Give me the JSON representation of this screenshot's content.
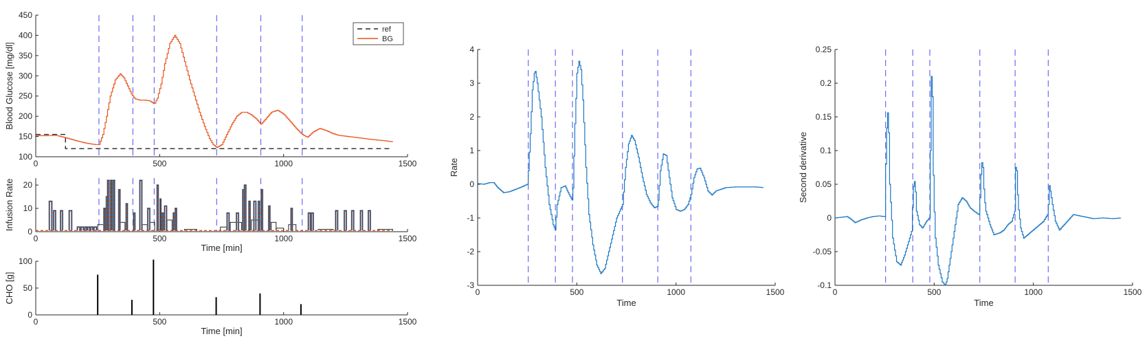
{
  "colors": {
    "axis": "#262626",
    "marker": "#6a6af0",
    "bg_line": "#e8531a",
    "ref_line": "#262626",
    "infusion_orange": "#e8531a",
    "infusion_blue": "#5b8fc4",
    "rate_line": "#1a76c2"
  },
  "meal_times": [
    255,
    392,
    478,
    730,
    908,
    1075
  ],
  "chart_data": [
    {
      "id": "bg",
      "type": "line",
      "xlabel": "",
      "ylabel": "Blood Glucose [mg/dl]",
      "xlim": [
        0,
        1500
      ],
      "ylim": [
        100,
        450
      ],
      "xticks": [
        0,
        500,
        1000,
        1500
      ],
      "yticks": [
        100,
        150,
        200,
        250,
        300,
        350,
        400,
        450
      ],
      "legend": {
        "position": "top-right",
        "entries": [
          "ref",
          "BG"
        ]
      },
      "series": [
        {
          "name": "ref",
          "style": "dashed",
          "x": [
            0,
            120,
            120,
            1440
          ],
          "y": [
            155,
            155,
            120,
            120
          ]
        },
        {
          "name": "BG",
          "style": "solid",
          "x": [
            0,
            40,
            80,
            120,
            160,
            200,
            240,
            255,
            270,
            285,
            300,
            320,
            340,
            355,
            370,
            385,
            400,
            420,
            440,
            460,
            478,
            490,
            505,
            520,
            540,
            560,
            580,
            600,
            620,
            640,
            660,
            680,
            700,
            715,
            730,
            750,
            770,
            790,
            810,
            830,
            850,
            870,
            890,
            908,
            925,
            950,
            975,
            1000,
            1025,
            1050,
            1075,
            1095,
            1120,
            1145,
            1170,
            1195,
            1220,
            1260,
            1300,
            1350,
            1400,
            1440
          ],
          "y": [
            152,
            152,
            153,
            147,
            140,
            134,
            130,
            130,
            155,
            200,
            250,
            290,
            305,
            295,
            275,
            255,
            243,
            240,
            240,
            238,
            230,
            245,
            280,
            330,
            380,
            400,
            380,
            335,
            290,
            250,
            210,
            175,
            145,
            130,
            123,
            130,
            155,
            180,
            200,
            210,
            210,
            203,
            193,
            180,
            192,
            210,
            215,
            205,
            188,
            170,
            155,
            148,
            162,
            170,
            165,
            158,
            153,
            150,
            147,
            143,
            140,
            137
          ]
        }
      ]
    },
    {
      "id": "infusion",
      "type": "line",
      "xlabel": "Time [min]",
      "ylabel": "Infusion Rate",
      "xlim": [
        0,
        1500
      ],
      "ylim": [
        0,
        23
      ],
      "xticks": [
        0,
        500,
        1000,
        1500
      ],
      "yticks": [
        0,
        10,
        20
      ],
      "series": [
        {
          "name": "",
          "style": "dashed",
          "x": [
            0,
            1440
          ],
          "y": [
            0.5,
            0.5
          ]
        },
        {
          "name": "",
          "style": "solid",
          "pulses": [
            [
              55,
              65,
              13
            ],
            [
              72,
              80,
              9
            ],
            [
              100,
              108,
              9
            ],
            [
              135,
              145,
              9
            ],
            [
              168,
              178,
              2
            ],
            [
              183,
              192,
              2
            ],
            [
              198,
              205,
              2
            ],
            [
              210,
              218,
              2
            ],
            [
              222,
              230,
              2
            ],
            [
              235,
              245,
              2
            ],
            [
              275,
              280,
              10
            ],
            [
              285,
              290,
              15
            ],
            [
              290,
              295,
              22
            ],
            [
              302,
              306,
              22
            ],
            [
              312,
              318,
              22
            ],
            [
              335,
              340,
              18
            ],
            [
              365,
              370,
              12
            ],
            [
              395,
              400,
              8
            ],
            [
              420,
              428,
              22
            ],
            [
              452,
              460,
              10
            ],
            [
              490,
              494,
              20
            ],
            [
              502,
              505,
              14
            ],
            [
              510,
              515,
              8
            ],
            [
              520,
              528,
              11
            ],
            [
              555,
              560,
              8
            ],
            [
              563,
              568,
              10
            ],
            [
              772,
              780,
              8
            ],
            [
              810,
              818,
              8
            ],
            [
              835,
              840,
              18
            ],
            [
              842,
              848,
              20
            ],
            [
              860,
              865,
              13
            ],
            [
              880,
              888,
              13
            ],
            [
              898,
              903,
              13
            ],
            [
              910,
              915,
              18
            ],
            [
              940,
              945,
              11
            ],
            [
              1030,
              1035,
              10
            ],
            [
              1100,
              1108,
              8
            ],
            [
              1112,
              1120,
              8
            ],
            [
              1210,
              1218,
              9
            ],
            [
              1245,
              1253,
              9
            ],
            [
              1275,
              1283,
              9
            ],
            [
              1310,
              1318,
              9
            ],
            [
              1342,
              1350,
              9
            ]
          ],
          "blocks": [
            [
              250,
              275,
              3
            ],
            [
              340,
              360,
              4
            ],
            [
              430,
              450,
              3
            ],
            [
              460,
              480,
              4
            ],
            [
              530,
              550,
              5
            ],
            [
              600,
              650,
              1
            ],
            [
              745,
              770,
              2
            ],
            [
              785,
              830,
              4
            ],
            [
              870,
              900,
              5
            ],
            [
              950,
              970,
              4
            ],
            [
              970,
              1000,
              1.5
            ],
            [
              1020,
              1050,
              3
            ],
            [
              1140,
              1200,
              1
            ],
            [
              1380,
              1440,
              1
            ]
          ]
        }
      ]
    },
    {
      "id": "cho",
      "type": "bar",
      "xlabel": "Time [min]",
      "ylabel": "CHO [g]",
      "xlim": [
        0,
        1500
      ],
      "ylim": [
        0,
        100
      ],
      "xticks": [
        0,
        500,
        1000,
        1500
      ],
      "yticks": [
        0,
        50,
        100
      ],
      "x": [
        250,
        388,
        475,
        728,
        905,
        1070
      ],
      "values": [
        75,
        28,
        103,
        33,
        40,
        20
      ]
    },
    {
      "id": "rate",
      "type": "line",
      "xlabel": "Time",
      "ylabel": "Rate",
      "xlim": [
        0,
        1500
      ],
      "ylim": [
        -3,
        4
      ],
      "xticks": [
        0,
        500,
        1000,
        1500
      ],
      "yticks": [
        -3,
        -2,
        -1,
        0,
        1,
        2,
        3,
        4
      ],
      "series": [
        {
          "name": "",
          "x": [
            0,
            30,
            60,
            80,
            100,
            130,
            160,
            190,
            220,
            250,
            255,
            265,
            275,
            285,
            290,
            300,
            320,
            340,
            360,
            380,
            390,
            400,
            420,
            440,
            460,
            478,
            490,
            500,
            510,
            520,
            530,
            545,
            560,
            580,
            600,
            620,
            640,
            660,
            680,
            700,
            730,
            745,
            760,
            775,
            790,
            810,
            830,
            850,
            870,
            890,
            908,
            920,
            935,
            950,
            965,
            980,
            1000,
            1020,
            1040,
            1060,
            1075,
            1090,
            1105,
            1120,
            1140,
            1160,
            1180,
            1200,
            1250,
            1300,
            1350,
            1400,
            1440
          ],
          "y": [
            0.02,
            0.0,
            0.05,
            0.05,
            -0.1,
            -0.25,
            -0.22,
            -0.15,
            -0.08,
            0.0,
            0.4,
            1.5,
            2.8,
            3.3,
            3.35,
            3.0,
            2.0,
            0.5,
            -0.6,
            -1.2,
            -1.35,
            -0.6,
            -0.1,
            -0.05,
            -0.3,
            -0.5,
            1.8,
            3.3,
            3.65,
            3.4,
            2.5,
            0.5,
            -0.9,
            -1.8,
            -2.4,
            -2.65,
            -2.5,
            -2.0,
            -1.5,
            -1.0,
            -0.6,
            0.5,
            1.2,
            1.45,
            1.3,
            0.8,
            0.2,
            -0.3,
            -0.55,
            -0.7,
            -0.65,
            0.4,
            0.9,
            0.85,
            0.2,
            -0.4,
            -0.75,
            -0.8,
            -0.75,
            -0.6,
            -0.3,
            0.2,
            0.45,
            0.48,
            0.2,
            -0.2,
            -0.32,
            -0.2,
            -0.1,
            -0.08,
            -0.08,
            -0.08,
            -0.1
          ]
        }
      ]
    },
    {
      "id": "second",
      "type": "line",
      "xlabel": "Time",
      "ylabel": "Second derivative",
      "xlim": [
        0,
        1500
      ],
      "ylim": [
        -0.1,
        0.25
      ],
      "xticks": [
        0,
        500,
        1000,
        1500
      ],
      "yticks": [
        -0.1,
        -0.05,
        0,
        0.05,
        0.1,
        0.15,
        0.2,
        0.25
      ],
      "series": [
        {
          "name": "",
          "x": [
            0,
            30,
            60,
            80,
            100,
            130,
            160,
            190,
            220,
            250,
            255,
            262,
            268,
            275,
            290,
            310,
            330,
            350,
            370,
            385,
            392,
            397,
            403,
            410,
            425,
            440,
            460,
            475,
            480,
            485,
            490,
            496,
            505,
            520,
            540,
            555,
            565,
            580,
            600,
            620,
            640,
            660,
            680,
            700,
            725,
            730,
            738,
            745,
            752,
            760,
            780,
            800,
            830,
            850,
            870,
            890,
            905,
            910,
            915,
            922,
            935,
            950,
            970,
            990,
            1010,
            1030,
            1050,
            1070,
            1075,
            1080,
            1085,
            1095,
            1110,
            1130,
            1160,
            1200,
            1250,
            1300,
            1350,
            1400,
            1440
          ],
          "y": [
            0.0,
            0.001,
            0.002,
            -0.002,
            -0.007,
            -0.003,
            0.0,
            0.002,
            0.003,
            0.002,
            0.08,
            0.155,
            0.157,
            0.05,
            -0.03,
            -0.065,
            -0.07,
            -0.055,
            -0.035,
            -0.02,
            0.03,
            0.058,
            0.05,
            0.01,
            -0.01,
            -0.015,
            -0.005,
            0.0,
            0.1,
            0.21,
            0.18,
            0.04,
            -0.03,
            -0.07,
            -0.095,
            -0.1,
            -0.09,
            -0.06,
            -0.02,
            0.02,
            0.03,
            0.025,
            0.015,
            0.01,
            0.005,
            0.03,
            0.085,
            0.075,
            0.03,
            0.01,
            -0.01,
            -0.025,
            -0.022,
            -0.018,
            -0.01,
            -0.005,
            0.01,
            0.075,
            0.07,
            0.02,
            -0.015,
            -0.03,
            -0.025,
            -0.02,
            -0.015,
            -0.01,
            -0.005,
            0.005,
            0.02,
            0.048,
            0.04,
            0.02,
            -0.005,
            -0.018,
            -0.008,
            0.005,
            0.002,
            -0.001,
            0.0,
            -0.001,
            0.0
          ]
        }
      ]
    }
  ]
}
